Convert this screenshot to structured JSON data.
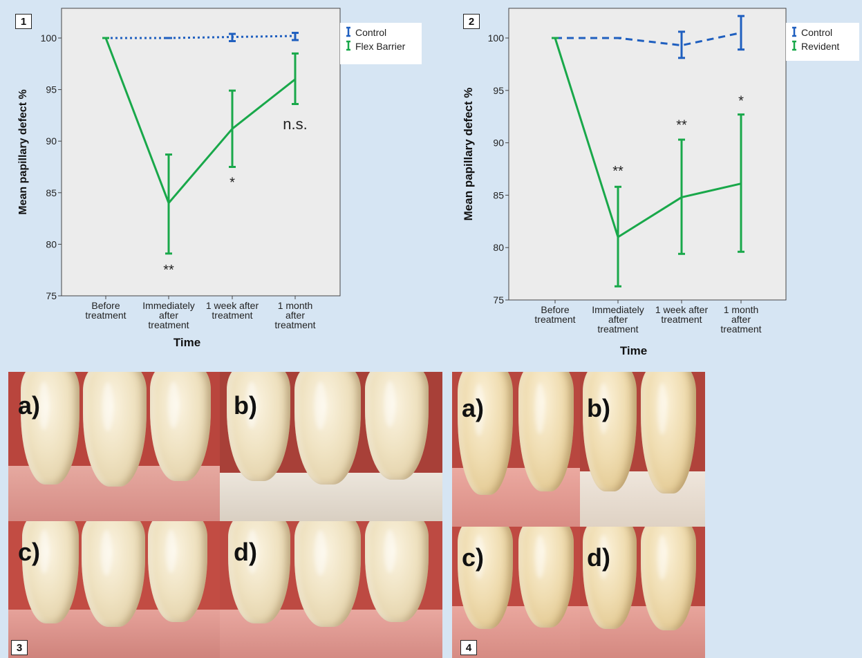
{
  "figure_labels": {
    "fig1": "1",
    "fig2": "2",
    "fig3": "3",
    "fig4": "4"
  },
  "photo_labels": {
    "a": "a)",
    "b": "b)",
    "c": "c)",
    "d": "d)"
  },
  "colors": {
    "control": "#1f5fbf",
    "treatment": "#19a84a",
    "plot_bg": "#ececec",
    "page_bg": "#d6e5f3"
  },
  "chart_data": [
    {
      "type": "line",
      "xlabel": "Time",
      "ylabel": "Mean papillary defect %",
      "ylim": [
        75,
        102.8
      ],
      "yticks": [
        "75",
        "80",
        "85",
        "90",
        "95",
        "100"
      ],
      "categories": [
        [
          "Before",
          "treatment"
        ],
        [
          "Immediately",
          "after",
          "treatment"
        ],
        [
          "1 week after",
          "treatment"
        ],
        [
          "1 month",
          "after",
          "treatment"
        ]
      ],
      "legend_position": "right-outside-top",
      "series": [
        {
          "name": "Control",
          "color": "#1f5fbf",
          "style": "dotted",
          "values": [
            100,
            100,
            100.1,
            100.2
          ],
          "error_low": [
            null,
            100,
            99.7,
            99.8
          ],
          "error_high": [
            null,
            100,
            100.4,
            100.5
          ]
        },
        {
          "name": "Flex Barrier",
          "color": "#19a84a",
          "style": "solid",
          "values": [
            100,
            84,
            91.2,
            96
          ],
          "error_low": [
            null,
            79.1,
            87.5,
            93.6
          ],
          "error_high": [
            null,
            88.7,
            94.9,
            98.5
          ]
        }
      ],
      "annotations": [
        {
          "text": "**",
          "x": 1,
          "y": 77.6,
          "size": 20
        },
        {
          "text": "*",
          "x": 2,
          "y": 86.1,
          "size": 20
        },
        {
          "text": "n.s.",
          "x": 3,
          "y": 91.7,
          "size": 22
        }
      ]
    },
    {
      "type": "line",
      "xlabel": "Time",
      "ylabel": "Mean papillary defect %",
      "ylim": [
        75,
        102.8
      ],
      "yticks": [
        "75",
        "80",
        "85",
        "90",
        "95",
        "100"
      ],
      "categories": [
        [
          "Before",
          "treatment"
        ],
        [
          "Immediately",
          "after",
          "treatment"
        ],
        [
          "1 week after",
          "treatment"
        ],
        [
          "1 month",
          "after",
          "treatment"
        ]
      ],
      "legend_position": "right-outside-top",
      "series": [
        {
          "name": "Control",
          "color": "#1f5fbf",
          "style": "dashed",
          "values": [
            100,
            100,
            99.3,
            100.5
          ],
          "error_low": [
            null,
            100,
            98.1,
            98.9
          ],
          "error_high": [
            null,
            100,
            100.6,
            102.1
          ]
        },
        {
          "name": "Revident",
          "color": "#19a84a",
          "style": "solid",
          "values": [
            100,
            81,
            84.8,
            86.1
          ],
          "error_low": [
            null,
            76.3,
            79.4,
            79.6
          ],
          "error_high": [
            null,
            85.8,
            90.3,
            92.7
          ]
        }
      ],
      "annotations": [
        {
          "text": "**",
          "x": 1,
          "y": 87.4,
          "size": 20
        },
        {
          "text": "**",
          "x": 2,
          "y": 91.8,
          "size": 20
        },
        {
          "text": "*",
          "x": 3,
          "y": 94.1,
          "size": 20
        }
      ]
    }
  ]
}
